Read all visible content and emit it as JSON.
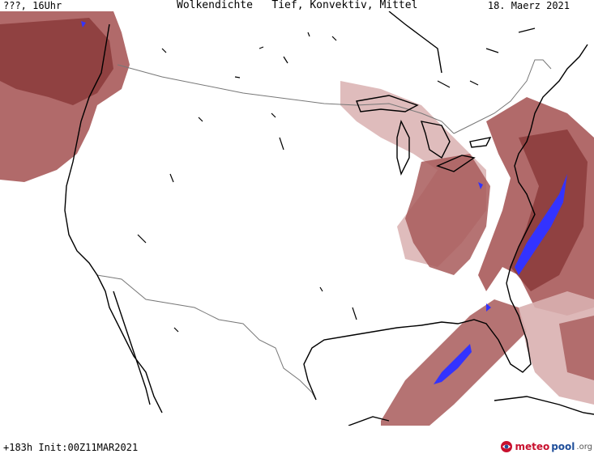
{
  "header": {
    "left": "???, 16Uhr",
    "center": "Wolkendichte   Tief, Konvektiv, Mittel",
    "right": "18. Maerz 2021"
  },
  "footer": {
    "run_info": "+183h Init:00Z11MAR2021"
  },
  "logo": {
    "part1": "meteo",
    "part2": "pool",
    "part3": ".org"
  },
  "colors": {
    "cloud_dense": "#8b3a3a",
    "cloud_mid": "#a85a5a",
    "cloud_light": "#d9b0b0",
    "convective": "#3333ff",
    "coast": "#000000",
    "border": "#777777"
  },
  "icons": {
    "logo": "meteopool-globe-icon"
  }
}
